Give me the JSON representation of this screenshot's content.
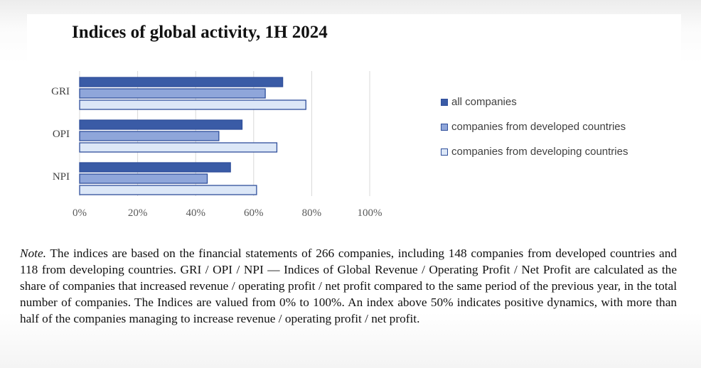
{
  "page": {
    "title": "Indices of global activity, 1H 2024",
    "note_label": "Note.",
    "note_text": "The indices are based on the financial statements of 266 companies, including 148 companies from developed countries and 118 from developing countries. GRI / OPI / NPI — Indices of Global Revenue / Operating Profit / Net Profit are calculated as the share of companies that increased revenue / operating profit / net profit compared to the same period of the previous year, in the total number of companies. The Indices are valued from 0% to 100%. An index above 50% indicates positive dynamics, with more than half of the companies managing to increase revenue / operating profit / net profit."
  },
  "chart_data": {
    "type": "bar",
    "orientation": "horizontal",
    "title": "Indices of global activity, 1H 2024",
    "categories": [
      "GRI",
      "OPI",
      "NPI"
    ],
    "series": [
      {
        "name": "all companies",
        "values": [
          70,
          56,
          52
        ],
        "color": "#3A5BA6",
        "stroke": "#2F4F9B"
      },
      {
        "name": "companies from developed countries",
        "values": [
          64,
          48,
          44
        ],
        "color": "#8FA6DA",
        "stroke": "#2F4F9B"
      },
      {
        "name": "companies from developing countries",
        "values": [
          78,
          68,
          61
        ],
        "color": "#DCE7F7",
        "stroke": "#2F4F9B"
      }
    ],
    "xlim": [
      0,
      100
    ],
    "xticks": [
      0,
      20,
      40,
      60,
      80,
      100
    ],
    "tick_suffix": "%",
    "xtick_labels": [
      "0%",
      "20%",
      "40%",
      "60%",
      "80%",
      "100%"
    ],
    "grid": true,
    "legend_position": "right"
  }
}
